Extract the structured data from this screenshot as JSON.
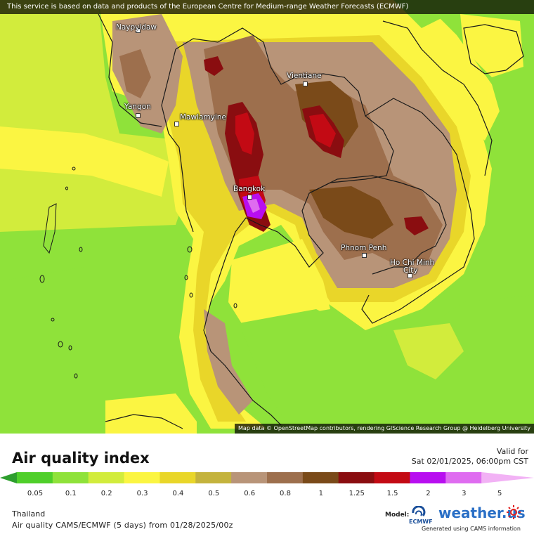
{
  "banner": "This service is based on data and products of the European Centre for Medium-range Weather Forecasts (ECMWF)",
  "attribution": "Map data © OpenStreetMap contributors, rendering GIScience Research Group @ Heidelberg University",
  "cities": [
    {
      "name": "Naypyidaw"
    },
    {
      "name": "Yangon"
    },
    {
      "name": "Mawlamyine"
    },
    {
      "name": "Vientiane"
    },
    {
      "name": "Bangkok"
    },
    {
      "name": "Phnom Penh"
    },
    {
      "name": "Ho Chi Minh"
    },
    {
      "name": "City"
    }
  ],
  "title": "Air quality index",
  "valid_label": "Valid for",
  "valid_date": "Sat 02/01/2025, 06:00pm CST",
  "scale": {
    "ticks": [
      "0.05",
      "0.1",
      "0.2",
      "0.3",
      "0.4",
      "0.5",
      "0.6",
      "0.8",
      "1",
      "1.25",
      "1.5",
      "2",
      "3",
      "5"
    ],
    "colors": [
      "#2e9e2e",
      "#4fcf2a",
      "#8fe23a",
      "#d2ec3c",
      "#fbf542",
      "#e9d629",
      "#c4b33d",
      "#b89478",
      "#9d6f4d",
      "#7a4a19",
      "#8a0d10",
      "#c30a14",
      "#b80ef0",
      "#df6cf0",
      "#f2b2f5"
    ]
  },
  "region": "Thailand",
  "model_line": "Air quality CAMS/ECMWF (5 days) from 01/28/2025/00z",
  "model_label": "Model:",
  "ecmwf_text": "ECMWF",
  "weather_logo": "weather.us",
  "generated": "Generated using CAMS information"
}
